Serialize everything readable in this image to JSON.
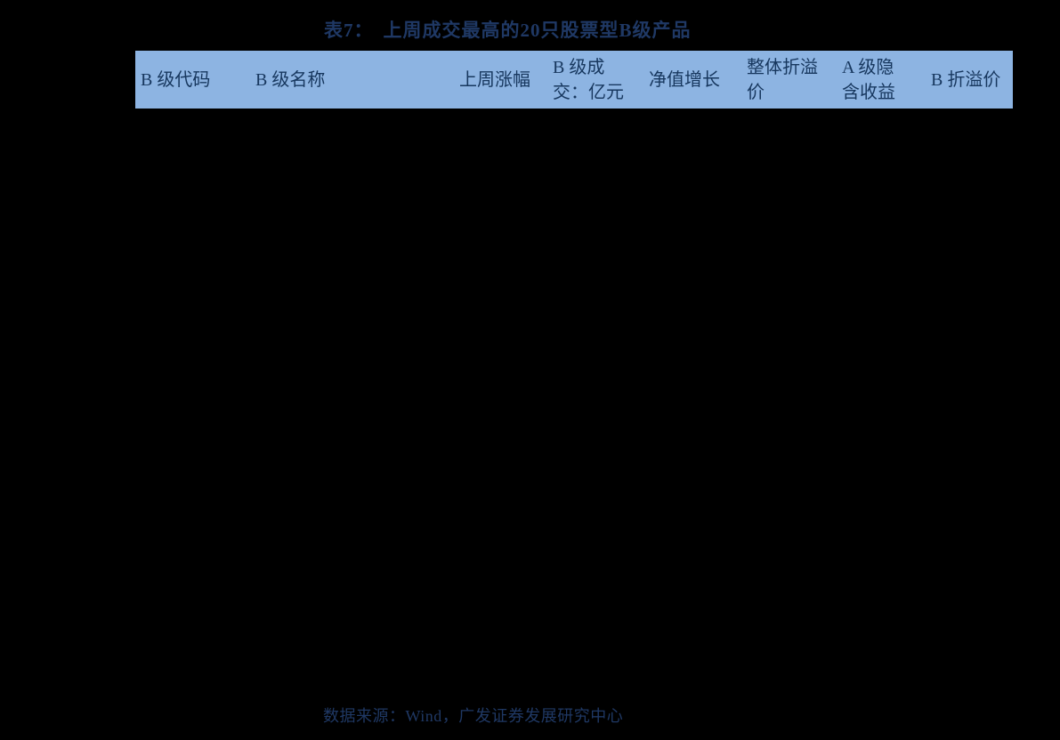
{
  "page": {
    "background_color": "#000000"
  },
  "title": {
    "label": "表7：",
    "text": "上周成交最高的20只股票型B级产品",
    "color": "#1F3864"
  },
  "table": {
    "header": {
      "background_color": "#8DB4E2",
      "text_color": "#17375E",
      "columns": [
        {
          "id": "b-class-code",
          "lines": [
            "B 级代码"
          ]
        },
        {
          "id": "b-class-name",
          "lines": [
            "B 级名称"
          ]
        },
        {
          "id": "last-week-change",
          "lines": [
            "上周涨幅"
          ]
        },
        {
          "id": "b-class-turnover",
          "lines": [
            "B 级成",
            "交：亿元"
          ]
        },
        {
          "id": "nav-growth",
          "lines": [
            "净值增长"
          ]
        },
        {
          "id": "overall-premium-discount",
          "lines": [
            "整体折溢",
            "价"
          ]
        },
        {
          "id": "a-class-implied-yield",
          "lines": [
            "A 级隐",
            "含收益"
          ]
        },
        {
          "id": "b-class-premium-discount",
          "lines": [
            "B 折溢价"
          ]
        }
      ]
    }
  },
  "footer": {
    "source": "数据来源：Wind，广发证券发展研究中心",
    "color": "#1F3864"
  }
}
